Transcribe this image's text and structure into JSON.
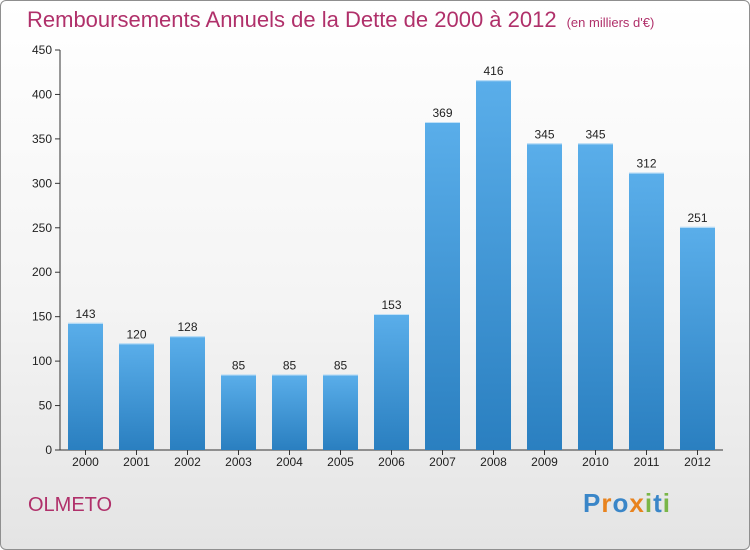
{
  "title": "Remboursements Annuels de la Dette de 2000 à 2012",
  "unit": "(en milliers d'€)",
  "place": "OLMETO",
  "logo": {
    "text": "Proxiti",
    "letters": [
      {
        "ch": "P",
        "color": "#3a86c8"
      },
      {
        "ch": "r",
        "color": "#e8831e"
      },
      {
        "ch": "o",
        "color": "#3a86c8"
      },
      {
        "ch": "x",
        "color": "#e8831e"
      },
      {
        "ch": "i",
        "color": "#7ab648"
      },
      {
        "ch": "t",
        "color": "#3a86c8"
      },
      {
        "ch": "i",
        "color": "#7ab648"
      }
    ]
  },
  "colors": {
    "accent": "#b0306a",
    "bar_top": "#5aaeea",
    "bar_bottom": "#2a7fc0"
  },
  "chart_data": {
    "type": "bar",
    "categories": [
      "2000",
      "2001",
      "2002",
      "2003",
      "2004",
      "2005",
      "2006",
      "2007",
      "2008",
      "2009",
      "2010",
      "2011",
      "2012"
    ],
    "values": [
      143,
      120,
      128,
      85,
      85,
      85,
      153,
      369,
      416,
      345,
      345,
      312,
      251
    ],
    "ylim": [
      0,
      450
    ],
    "yticks": [
      0,
      50,
      100,
      150,
      200,
      250,
      300,
      350,
      400,
      450
    ],
    "grid": false,
    "legend": "none"
  }
}
